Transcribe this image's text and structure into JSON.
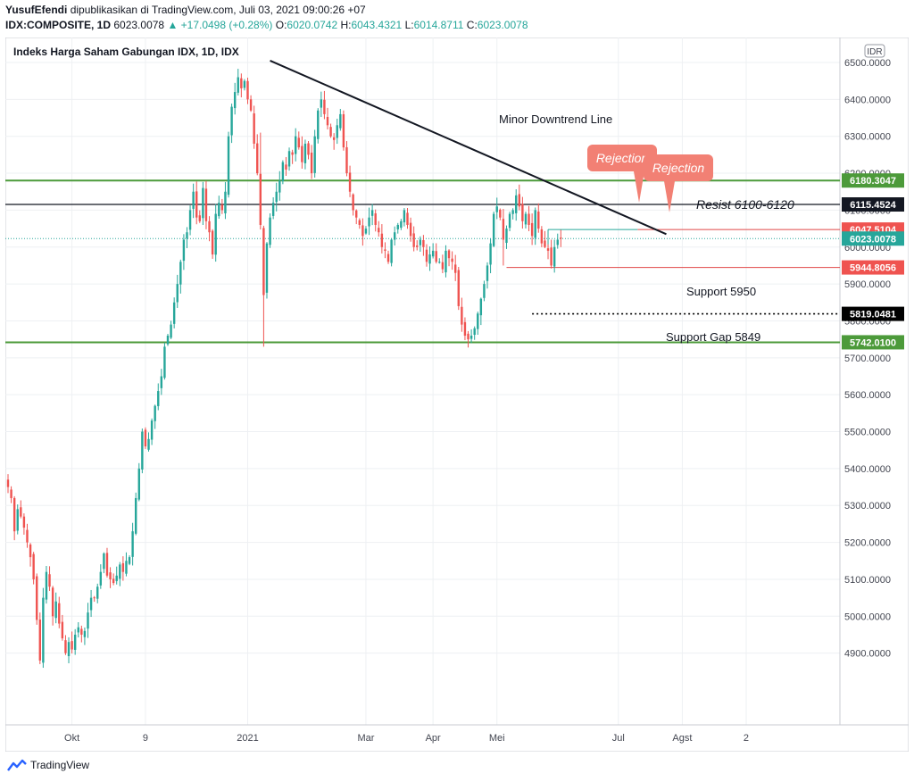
{
  "header": {
    "author": "YusufEfendi",
    "published_text": "dipublikasikan di TradingView.com, Juli 03, 2021 09:00:26 +07",
    "symbol": "IDX:COMPOSITE, 1D",
    "last_price": "6023.0078",
    "change": "▲ +17.0498 (+0.28%)",
    "o_label": "O:",
    "o_value": "6020.0742",
    "h_label": "H:",
    "h_value": "6043.4321",
    "l_label": "L:",
    "l_value": "6014.8711",
    "c_label": "C:",
    "c_value": "6023.0078"
  },
  "footer": {
    "brand": "TradingView",
    "icon": "tradingview-logo-icon"
  },
  "colors": {
    "up": "#26a69a",
    "down": "#ef5350",
    "green_line": "#4c9a3a",
    "black": "#131722",
    "red_line": "#e04848",
    "rejection_bubble": "#f28074",
    "grid": "#eef0f3"
  },
  "chart_data": {
    "type": "candlestick",
    "title": "Indeks Harga Saham Gabungan IDX, 1D, IDX",
    "currency_label": "IDR",
    "ylim": [
      4800,
      6500
    ],
    "y_ticks": [
      "6500.0000",
      "6400.0000",
      "6300.0000",
      "6200.0000",
      "6100.0000",
      "6000.0000",
      "5900.0000",
      "5800.0000",
      "5700.0000",
      "5600.0000",
      "5500.0000",
      "5400.0000",
      "5300.0000",
      "5200.0000",
      "5100.0000",
      "5000.0000",
      "4900.0000"
    ],
    "x_ticks": [
      {
        "label": "Okt",
        "idx": 20
      },
      {
        "label": "9",
        "idx": 43
      },
      {
        "label": "2021",
        "idx": 75
      },
      {
        "label": "Mar",
        "idx": 112
      },
      {
        "label": "Apr",
        "idx": 133
      },
      {
        "label": "Mei",
        "idx": 153
      },
      {
        "label": "Jul",
        "idx": 191
      },
      {
        "label": "Agst",
        "idx": 211
      },
      {
        "label": "2",
        "idx": 231
      }
    ],
    "grid": true,
    "candles_close": [
      5350,
      5320,
      5230,
      5290,
      5270,
      5240,
      5200,
      5160,
      5100,
      4990,
      4880,
      5050,
      5120,
      5080,
      5000,
      5040,
      4980,
      4940,
      4900,
      4930,
      4910,
      4950,
      4970,
      4950,
      4960,
      5010,
      5050,
      5050,
      5080,
      5120,
      5170,
      5110,
      5100,
      5090,
      5110,
      5140,
      5120,
      5150,
      5160,
      5230,
      5320,
      5400,
      5500,
      5460,
      5480,
      5530,
      5570,
      5610,
      5650,
      5730,
      5760,
      5790,
      5850,
      5900,
      5960,
      6020,
      6040,
      6100,
      6150,
      6080,
      6070,
      6160,
      6070,
      6040,
      5980,
      6090,
      6120,
      6100,
      6150,
      6300,
      6380,
      6420,
      6460,
      6430,
      6450,
      6400,
      6370,
      6280,
      6200,
      6060,
      5870,
      6010,
      6080,
      6120,
      6150,
      6180,
      6230,
      6210,
      6260,
      6250,
      6300,
      6270,
      6230,
      6280,
      6250,
      6200,
      6300,
      6370,
      6400,
      6360,
      6330,
      6300,
      6290,
      6330,
      6360,
      6270,
      6200,
      6150,
      6100,
      6080,
      6060,
      6030,
      6050,
      6080,
      6100,
      6060,
      6040,
      6000,
      5990,
      5960,
      6020,
      6040,
      6060,
      6070,
      6100,
      6060,
      6030,
      6000,
      6000,
      6020,
      6000,
      5960,
      5980,
      5990,
      5960,
      5960,
      5940,
      5990,
      5970,
      5960,
      5930,
      5840,
      5790,
      5760,
      5750,
      5760,
      5780,
      5820,
      5860,
      5900,
      5950,
      6010,
      6090,
      6110,
      6080,
      6020,
      6050,
      6090,
      6100,
      6140,
      6110,
      6070,
      6090,
      6060,
      6030,
      6100,
      6050,
      6010,
      6000,
      5990,
      5950,
      6000,
      6020,
      6023
    ],
    "annotations": {
      "trendline_label": "Minor Downtrend Line",
      "resist_label": "Resist 6100-6120",
      "support_label": "Support 5950",
      "gap_label": "Support Gap 5849",
      "rejection_1": "Rejection",
      "rejection_2": "Rejection"
    },
    "price_tags": [
      {
        "text": "6180.3047",
        "value": 6180.3047,
        "bg": "#4c9a3a"
      },
      {
        "text": "6115.4524",
        "value": 6115.4524,
        "bg": "#131722"
      },
      {
        "text": "6047.5104",
        "value": 6047.5104,
        "bg": "#ef5350"
      },
      {
        "text": "6023.0078",
        "value": 6023.0078,
        "bg": "#26a69a"
      },
      {
        "text": "5944.8056",
        "value": 5944.8056,
        "bg": "#ef5350"
      },
      {
        "text": "5819.0481",
        "value": 5819.0481,
        "bg": "#000000"
      },
      {
        "text": "5742.0100",
        "value": 5742.01,
        "bg": "#4c9a3a"
      }
    ],
    "levels": {
      "green_top": 6180.3047,
      "black_resist": 6115.4524,
      "red_resist": 6047.5104,
      "red_support": 5944.8056,
      "gap": 5819.0481,
      "green_bottom": 5742.01
    },
    "trendline": {
      "start_idx": 82,
      "start_value": 6505,
      "end_idx": 206,
      "end_value": 6035
    }
  }
}
